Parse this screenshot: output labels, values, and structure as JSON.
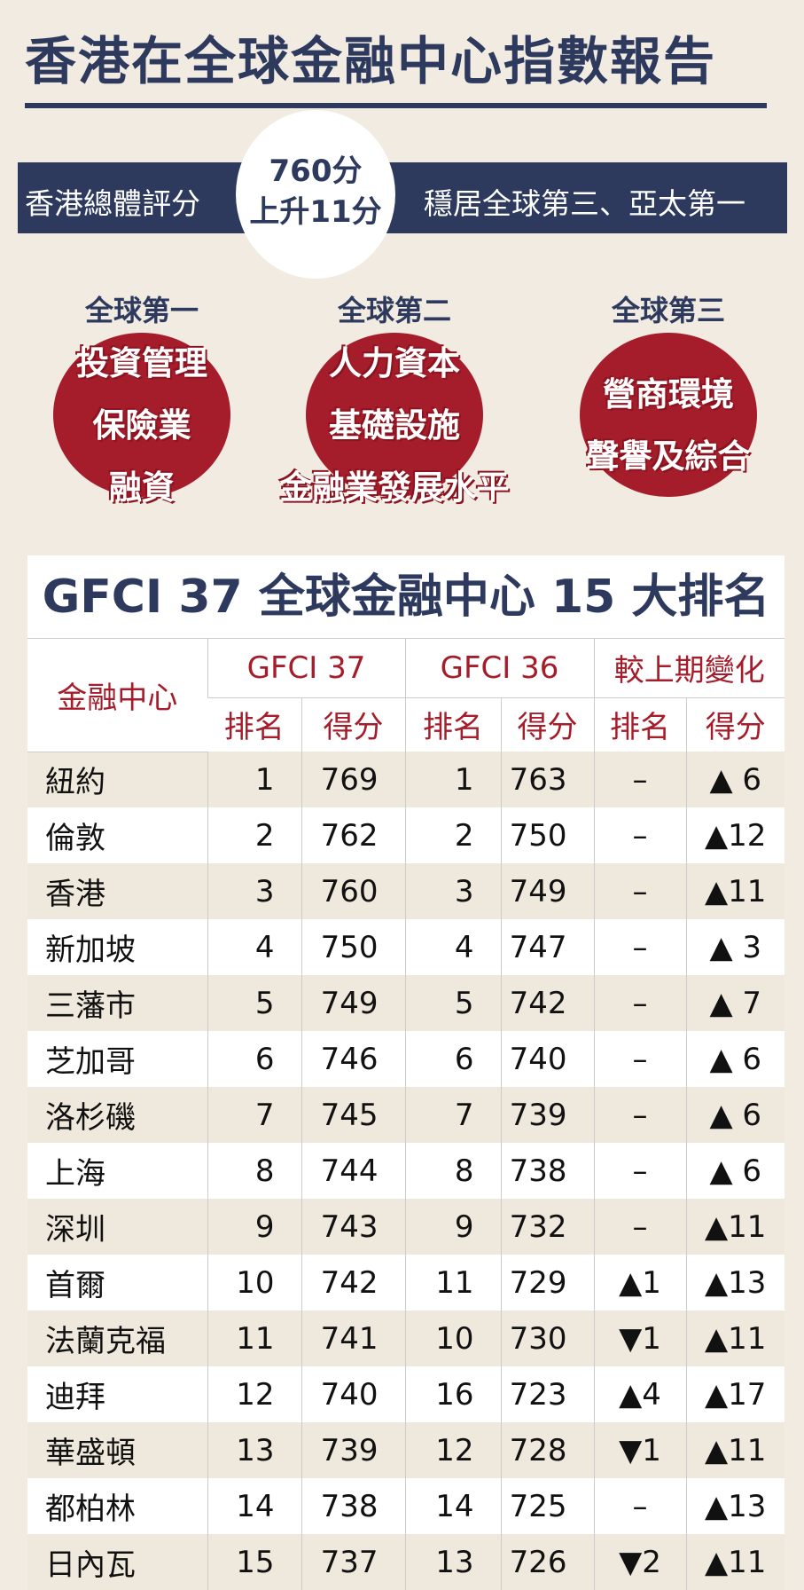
{
  "title": "香港在全球金融中心指數報告",
  "banner": {
    "left": "香港總體評分",
    "score": "760分",
    "change": "上升11分",
    "right": "穩居全球第三、亞太第一"
  },
  "awards": [
    {
      "rank": "全球第一",
      "items": [
        "投資管理",
        "保險業",
        "融資"
      ]
    },
    {
      "rank": "全球第二",
      "items": [
        "人力資本",
        "基礎設施",
        "金融業發展水平"
      ]
    },
    {
      "rank": "全球第三",
      "items": [
        "營商環境",
        "聲譽及綜合"
      ]
    }
  ],
  "table": {
    "title": "GFCI 37 全球金融中心 15 大排名",
    "headers": {
      "city": "金融中心",
      "g37": "GFCI 37",
      "g36": "GFCI 36",
      "change": "較上期變化",
      "rank": "排名",
      "score": "得分"
    },
    "rows": [
      [
        "紐約",
        "1",
        "769",
        "1",
        "763",
        "–",
        "▲ 6"
      ],
      [
        "倫敦",
        "2",
        "762",
        "2",
        "750",
        "–",
        "▲12"
      ],
      [
        "香港",
        "3",
        "760",
        "3",
        "749",
        "–",
        "▲11"
      ],
      [
        "新加坡",
        "4",
        "750",
        "4",
        "747",
        "–",
        "▲ 3"
      ],
      [
        "三藩市",
        "5",
        "749",
        "5",
        "742",
        "–",
        "▲ 7"
      ],
      [
        "芝加哥",
        "6",
        "746",
        "6",
        "740",
        "–",
        "▲ 6"
      ],
      [
        "洛杉磯",
        "7",
        "745",
        "7",
        "739",
        "–",
        "▲ 6"
      ],
      [
        "上海",
        "8",
        "744",
        "8",
        "738",
        "–",
        "▲ 6"
      ],
      [
        "深圳",
        "9",
        "743",
        "9",
        "732",
        "–",
        "▲11"
      ],
      [
        "首爾",
        "10",
        "742",
        "11",
        "729",
        "▲1",
        "▲13"
      ],
      [
        "法蘭克福",
        "11",
        "741",
        "10",
        "730",
        "▼1",
        "▲11"
      ],
      [
        "迪拜",
        "12",
        "740",
        "16",
        "723",
        "▲4",
        "▲17"
      ],
      [
        "華盛頓",
        "13",
        "739",
        "12",
        "728",
        "▼1",
        "▲11"
      ],
      [
        "都柏林",
        "14",
        "738",
        "14",
        "725",
        "–",
        "▲13"
      ],
      [
        "日內瓦",
        "15",
        "737",
        "13",
        "726",
        "▼2",
        "▲11"
      ]
    ]
  },
  "colors": {
    "navy": "#2d3a5e",
    "red": "#a51c2a",
    "background": "#f1ebe1"
  }
}
